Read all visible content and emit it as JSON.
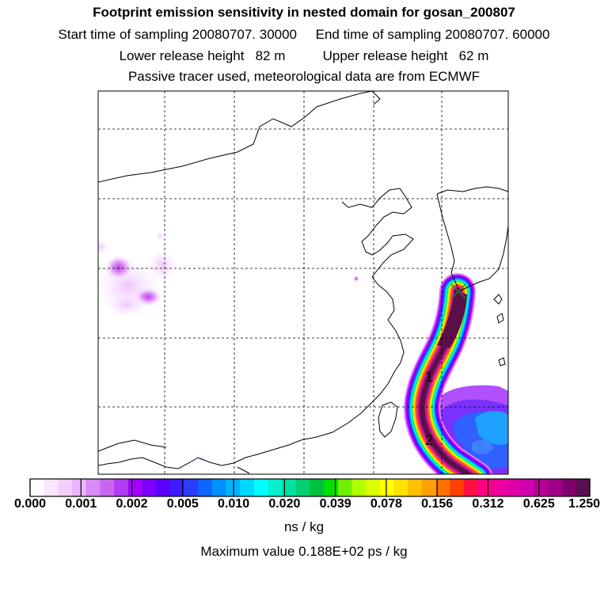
{
  "header": {
    "title": "Footprint emission sensitivity in nested domain for gosan_200807",
    "line2": "Start time of sampling 20080707. 30000     End time of sampling 20080707. 60000",
    "line3": "Lower release height   82 m          Upper release height   62 m",
    "line4": "Passive tracer used, meteorological data are from ECMWF"
  },
  "map": {
    "grid": "dashed",
    "trajectory_labels": [
      "1",
      "2"
    ],
    "receptor_marker": "x-marker-icon",
    "plume_colors": [
      "#5a0f4a",
      "#8b1f7a",
      "#d6108c",
      "#ff2d8a",
      "#ff6a00",
      "#ffd000",
      "#c8ff00",
      "#00e080",
      "#00ffff",
      "#0080ff",
      "#6600ff",
      "#b000ff",
      "#e080ff"
    ]
  },
  "colorbar": {
    "tick_labels": [
      "0.000",
      "0.001",
      "0.002",
      "0.005",
      "0.010",
      "0.020",
      "0.039",
      "0.078",
      "0.156",
      "0.312",
      "0.625",
      "1.250"
    ],
    "colors": [
      "#ffffff",
      "#fbe6ff",
      "#f3cfff",
      "#eab6ff",
      "#d98af7",
      "#c766f0",
      "#b33cf0",
      "#a000ff",
      "#7d00ff",
      "#5a00ff",
      "#3a1cff",
      "#2a3cff",
      "#1064ff",
      "#0090ff",
      "#00b4ff",
      "#00d8ff",
      "#00ffff",
      "#00f0d0",
      "#00e0a0",
      "#00d070",
      "#00c040",
      "#00e000",
      "#70f000",
      "#b0ff00",
      "#d8ff00",
      "#ffff00",
      "#ffe000",
      "#ffc000",
      "#ffa000",
      "#ff7000",
      "#ff4000",
      "#ff1040",
      "#ff0080",
      "#f0009a",
      "#e000a8",
      "#d000b0",
      "#b80098",
      "#a00086",
      "#800070",
      "#5a1050"
    ],
    "unit": "ns / kg",
    "max_value_text": "Maximum value  0.188E+02 ps / kg"
  }
}
